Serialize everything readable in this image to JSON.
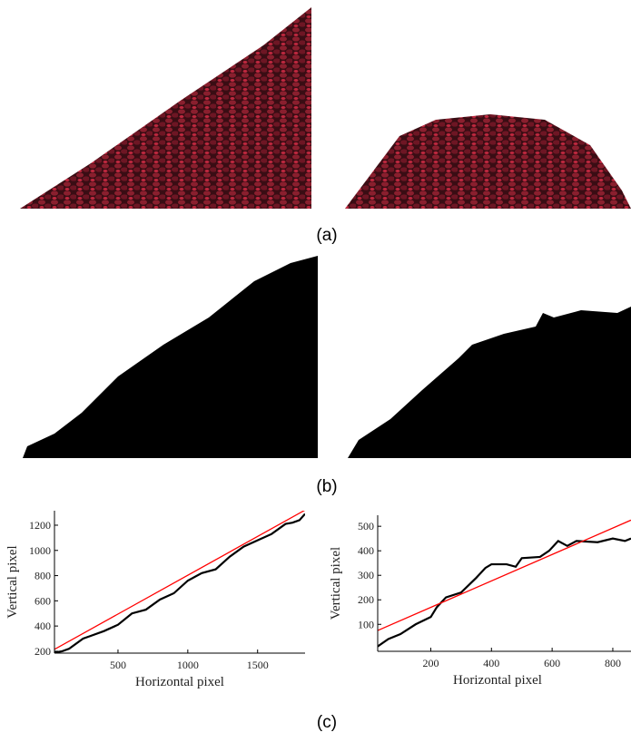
{
  "panel_labels": [
    "(a)",
    "(b)",
    "(c)"
  ],
  "chart_data": [
    {
      "type": "line",
      "x_label": "Horizontal pixel",
      "y_label": "Vertical pixel",
      "xlim": [
        45,
        1840
      ],
      "ylim": [
        185,
        1315
      ],
      "xticks": [
        500,
        1000,
        1500
      ],
      "yticks": [
        200,
        400,
        600,
        800,
        1000,
        1200
      ],
      "series": [
        {
          "color": "#000000",
          "x": [
            45,
            100,
            150,
            250,
            300,
            400,
            500,
            600,
            700,
            800,
            900,
            1000,
            1100,
            1200,
            1300,
            1400,
            1500,
            1600,
            1700,
            1750,
            1800,
            1840
          ],
          "values": [
            190,
            200,
            220,
            300,
            320,
            360,
            410,
            500,
            530,
            610,
            660,
            760,
            820,
            850,
            950,
            1030,
            1080,
            1130,
            1210,
            1220,
            1240,
            1290
          ]
        },
        {
          "color": "#ff0000",
          "x": [
            45,
            1840
          ],
          "values": [
            215,
            1320
          ]
        }
      ]
    },
    {
      "type": "line",
      "x_label": "Horizontal pixel",
      "y_label": "Vertical pixel",
      "xlim": [
        25,
        860
      ],
      "ylim": [
        -10,
        545
      ],
      "xticks": [
        200,
        400,
        600,
        800
      ],
      "yticks": [
        100,
        200,
        300,
        400,
        500
      ],
      "series": [
        {
          "color": "#000000",
          "x": [
            25,
            60,
            100,
            150,
            200,
            220,
            250,
            300,
            350,
            380,
            400,
            450,
            480,
            500,
            560,
            590,
            620,
            650,
            680,
            750,
            800,
            840,
            860
          ],
          "values": [
            10,
            40,
            60,
            100,
            130,
            170,
            210,
            230,
            290,
            330,
            345,
            345,
            335,
            370,
            375,
            400,
            440,
            420,
            440,
            435,
            450,
            440,
            450
          ]
        },
        {
          "color": "#ff0000",
          "x": [
            25,
            860
          ],
          "values": [
            75,
            525
          ]
        }
      ]
    }
  ]
}
